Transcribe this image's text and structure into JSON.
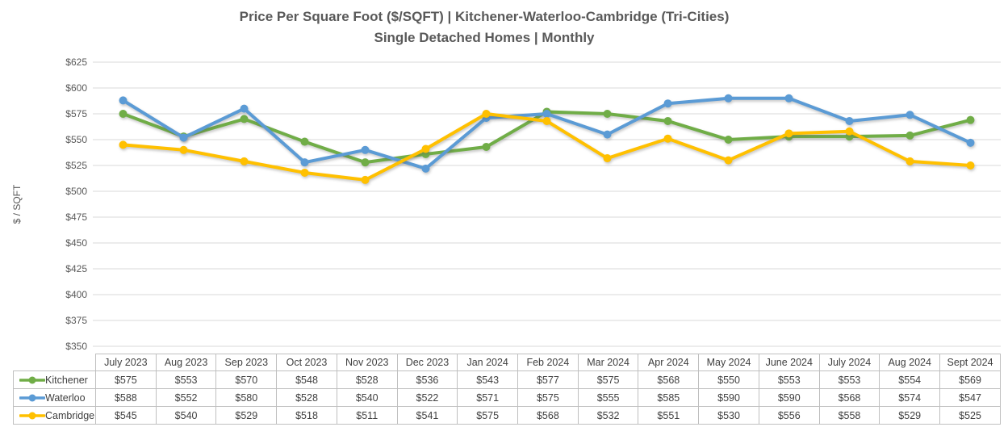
{
  "title": {
    "line1": "Price Per Square Foot ($/SQFT) | Kitchener-Waterloo-Cambridge (Tri-Cities)",
    "line2": "Single Detached Homes | Monthly"
  },
  "y_axis": {
    "label": "$ / SQFT"
  },
  "chart_data": {
    "type": "line",
    "title": "Price Per Square Foot ($/SQFT) | Kitchener-Waterloo-Cambridge (Tri-Cities) Single Detached Homes | Monthly",
    "ylabel": "$ / SQFT",
    "ylim": [
      350,
      625
    ],
    "ytick_step": 25,
    "value_prefix": "$",
    "grid": true,
    "legend_position": "table-left",
    "categories": [
      "July 2023",
      "Aug 2023",
      "Sep 2023",
      "Oct 2023",
      "Nov 2023",
      "Dec 2023",
      "Jan 2024",
      "Feb 2024",
      "Mar 2024",
      "Apr 2024",
      "May 2024",
      "June 2024",
      "July 2024",
      "Aug 2024",
      "Sept 2024"
    ],
    "series": [
      {
        "name": "Kitchener",
        "color": "#70AD47",
        "values": [
          575,
          553,
          570,
          548,
          528,
          536,
          543,
          577,
          575,
          568,
          550,
          553,
          553,
          554,
          569
        ]
      },
      {
        "name": "Waterloo",
        "color": "#5B9BD5",
        "values": [
          588,
          552,
          580,
          528,
          540,
          522,
          571,
          575,
          555,
          585,
          590,
          590,
          568,
          574,
          547
        ]
      },
      {
        "name": "Cambridge",
        "color": "#FFC000",
        "values": [
          545,
          540,
          529,
          518,
          511,
          541,
          575,
          568,
          532,
          551,
          530,
          556,
          558,
          529,
          525
        ]
      }
    ]
  },
  "colors": {
    "title_text": "#595959",
    "axis_text": "#595959",
    "table_text": "#404040",
    "gridline": "#D9D9D9",
    "table_border": "#BFBFBF",
    "background": "#FFFFFF"
  }
}
